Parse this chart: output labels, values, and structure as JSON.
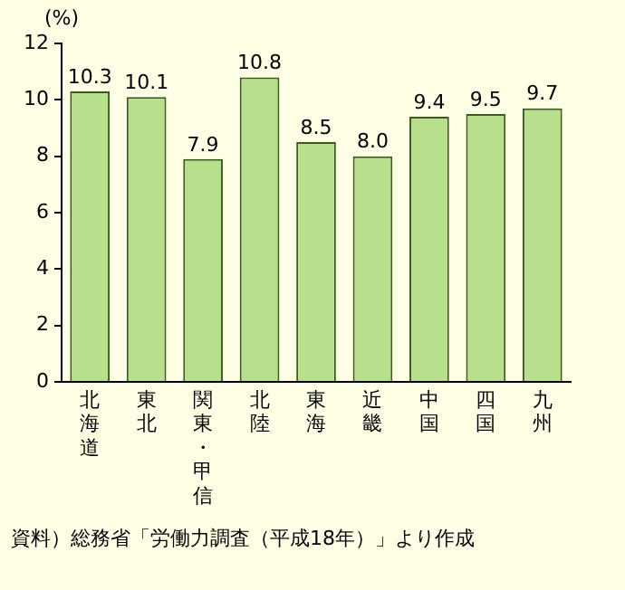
{
  "chart_data": {
    "type": "bar",
    "ylabel": "(%)",
    "categories": [
      "北海道",
      "東北",
      "関東・甲信",
      "北陸",
      "東海",
      "近畿",
      "中国",
      "四国",
      "九州"
    ],
    "values": [
      10.3,
      10.1,
      7.9,
      10.8,
      8.5,
      8.0,
      9.4,
      9.5,
      9.7
    ],
    "value_labels": [
      "10.3",
      "10.1",
      "7.9",
      "10.8",
      "8.5",
      "8.0",
      "9.4",
      "9.5",
      "9.7"
    ],
    "color": "#b8e08c",
    "ylim": [
      0,
      12
    ],
    "yticks": [
      0,
      2,
      4,
      6,
      8,
      10,
      12
    ],
    "grid": false,
    "legend": false,
    "annotations": [
      "資料）総務省「労働力調査（平成18年）」より作成"
    ]
  }
}
